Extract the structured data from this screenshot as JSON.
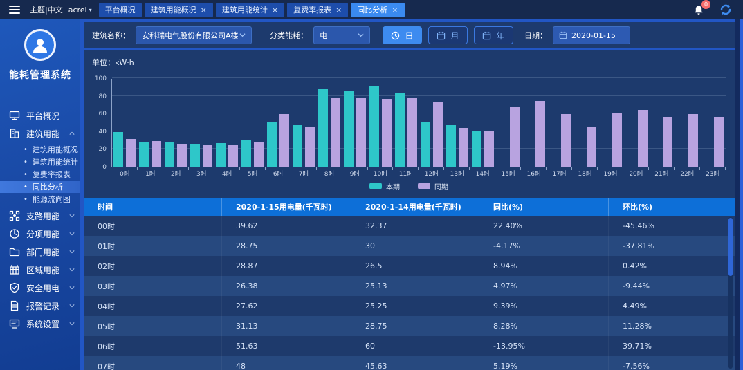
{
  "topbar": {
    "theme_label": "主题|中文",
    "user": "acrel",
    "tabs": [
      {
        "label": "平台概况",
        "closable": false,
        "active": false
      },
      {
        "label": "建筑用能概况",
        "closable": true,
        "active": false
      },
      {
        "label": "建筑用能统计",
        "closable": true,
        "active": false
      },
      {
        "label": "复费率报表",
        "closable": true,
        "active": false
      },
      {
        "label": "同比分析",
        "closable": true,
        "active": true
      }
    ],
    "notification_badge": "0"
  },
  "sidebar": {
    "title": "能耗管理系统",
    "items": [
      {
        "label": "平台概况",
        "icon": "monitor-icon",
        "type": "item"
      },
      {
        "label": "建筑用能",
        "icon": "building-icon",
        "type": "group",
        "expanded": true,
        "children": [
          {
            "label": "建筑用能概况",
            "active": false
          },
          {
            "label": "建筑用能统计",
            "active": false
          },
          {
            "label": "复费率报表",
            "active": false
          },
          {
            "label": "同比分析",
            "active": true
          },
          {
            "label": "能源流向图",
            "active": false
          }
        ]
      },
      {
        "label": "支路用能",
        "icon": "branch-icon",
        "type": "group"
      },
      {
        "label": "分项用能",
        "icon": "pie-icon",
        "type": "group"
      },
      {
        "label": "部门用能",
        "icon": "folder-icon",
        "type": "group"
      },
      {
        "label": "区域用能",
        "icon": "region-icon",
        "type": "group"
      },
      {
        "label": "安全用电",
        "icon": "shield-icon",
        "type": "group"
      },
      {
        "label": "报警记录",
        "icon": "report-icon",
        "type": "group"
      },
      {
        "label": "系统设置",
        "icon": "settings-icon",
        "type": "group"
      }
    ]
  },
  "filters": {
    "building_label": "建筑名称：",
    "building_value": "安科瑞电气股份有限公司A楼",
    "energy_label": "分类能耗：",
    "energy_value": "电",
    "period_buttons": [
      {
        "label": "日",
        "icon": "clock-icon",
        "active": true
      },
      {
        "label": "月",
        "icon": "calendar-icon",
        "active": false
      },
      {
        "label": "年",
        "icon": "calendar-icon",
        "active": false
      }
    ],
    "date_label": "日期：",
    "date_value": "2020-01-15"
  },
  "chart_data": {
    "type": "bar",
    "unit_label": "单位：kW·h",
    "categories": [
      "0时",
      "1时",
      "2时",
      "3时",
      "4时",
      "5时",
      "6时",
      "7时",
      "8时",
      "9时",
      "10时",
      "11时",
      "12时",
      "13时",
      "14时",
      "15时",
      "16时",
      "17时",
      "18时",
      "19时",
      "20时",
      "21时",
      "22时",
      "23时"
    ],
    "series": [
      {
        "name": "本期",
        "color": "#2ec7c9",
        "values": [
          39.62,
          28.75,
          28.87,
          26.38,
          27.62,
          31.13,
          51.63,
          48,
          88.4,
          86.3,
          92,
          84,
          51.6,
          47.4,
          41.7,
          null,
          null,
          null,
          null,
          null,
          null,
          null,
          null,
          null
        ]
      },
      {
        "name": "同期",
        "color": "#b8a3e0",
        "values": [
          32.37,
          30,
          26.5,
          25.13,
          25.25,
          28.75,
          60,
          45.63,
          79,
          79,
          77.7,
          78,
          74.4,
          44.9,
          40.9,
          67.7,
          75.2,
          59.8,
          45.9,
          61.3,
          64.7,
          57.3,
          59.8,
          57.3
        ]
      }
    ],
    "ylim": [
      0,
      100
    ],
    "yticks": [
      0,
      20,
      40,
      60,
      80,
      100
    ],
    "grid": true,
    "legend_position": "bottom"
  },
  "table": {
    "headers": [
      "时间",
      "2020-1-15用电量(千瓦时)",
      "2020-1-14用电量(千瓦时)",
      "同比(%)",
      "环比(%)"
    ],
    "rows": [
      [
        "00时",
        "39.62",
        "32.37",
        "22.40%",
        "-45.46%"
      ],
      [
        "01时",
        "28.75",
        "30",
        "-4.17%",
        "-37.81%"
      ],
      [
        "02时",
        "28.87",
        "26.5",
        "8.94%",
        "0.42%"
      ],
      [
        "03时",
        "26.38",
        "25.13",
        "4.97%",
        "-9.44%"
      ],
      [
        "04时",
        "27.62",
        "25.25",
        "9.39%",
        "4.49%"
      ],
      [
        "05时",
        "31.13",
        "28.75",
        "8.28%",
        "11.28%"
      ],
      [
        "06时",
        "51.63",
        "60",
        "-13.95%",
        "39.71%"
      ],
      [
        "07时",
        "48",
        "45.63",
        "5.19%",
        "-7.56%"
      ]
    ]
  }
}
